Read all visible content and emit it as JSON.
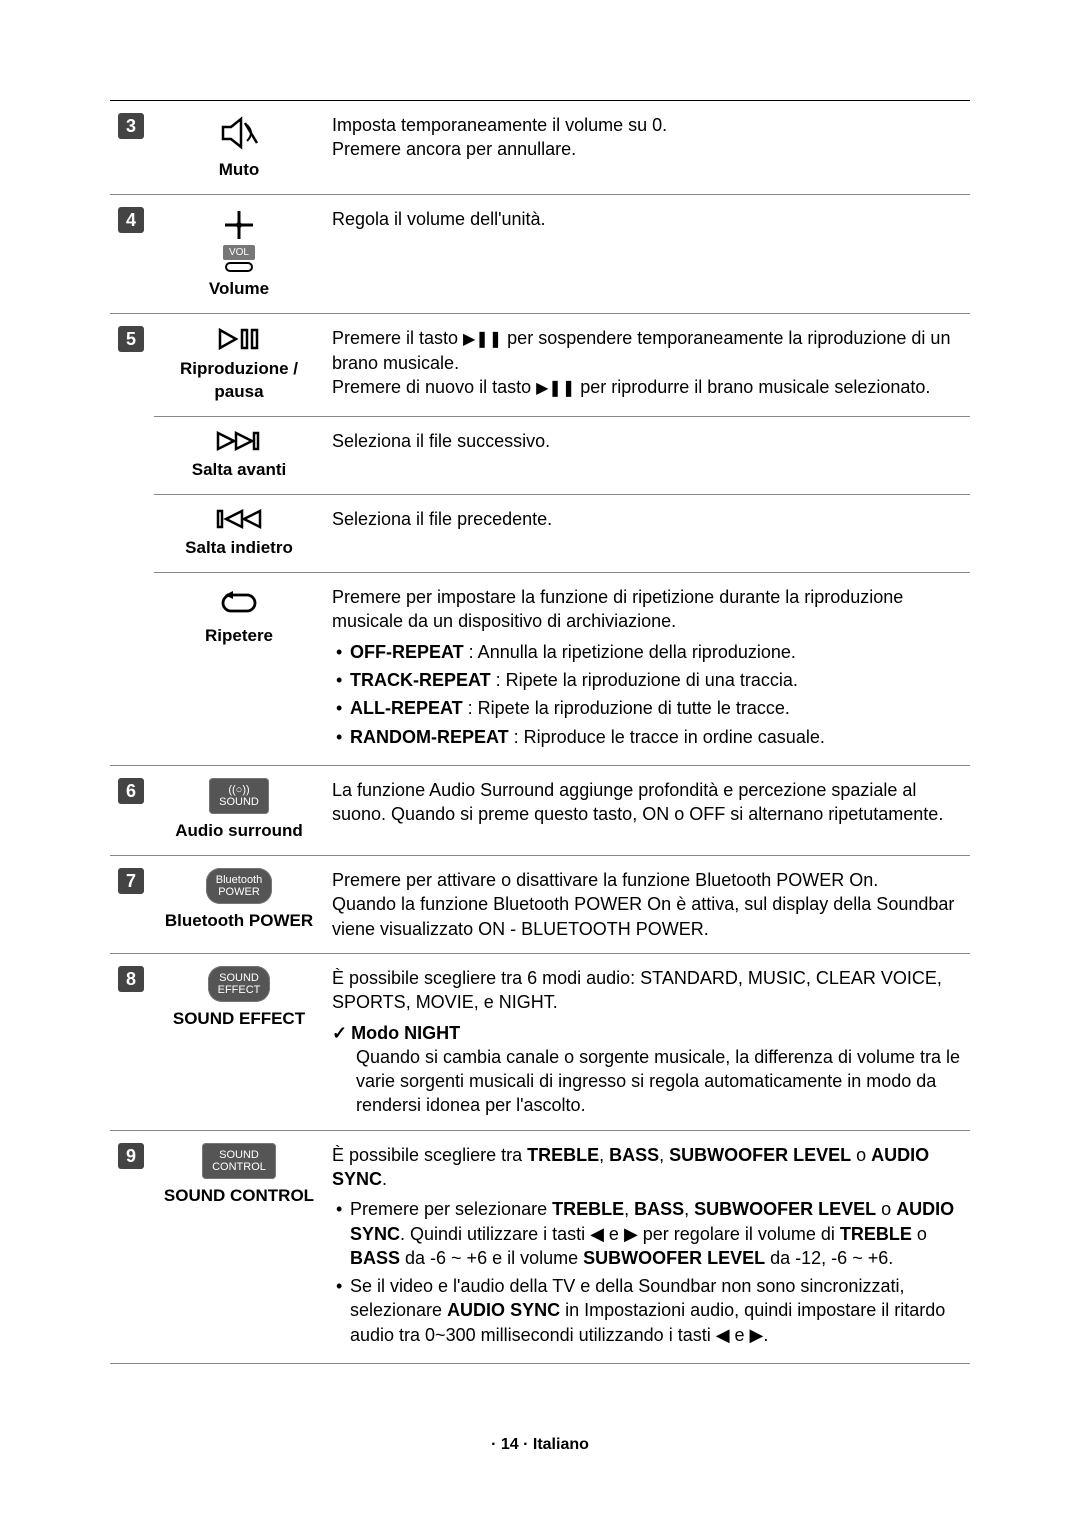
{
  "rows": {
    "r3": {
      "num": "3",
      "label": "Muto",
      "desc_html": "Imposta temporaneamente il volume su 0.<br>Premere ancora per annullare."
    },
    "r4": {
      "num": "4",
      "label": "Volume",
      "vol_text": "VOL",
      "desc_html": "Regola il volume dell'unità."
    },
    "r5": {
      "num": "5",
      "play_label": "Riproduzione / pausa",
      "play_desc_html": "Premere il tasto <span class='play-sym'>▶❚❚</span> per sospendere temporaneamente la riproduzione di un brano musicale.<br>Premere di nuovo il tasto <span class='play-sym'>▶❚❚</span> per riprodurre il brano musicale selezionato.",
      "fwd_label": "Salta avanti",
      "fwd_desc": "Seleziona il file successivo.",
      "back_label": "Salta indietro",
      "back_desc": "Seleziona il file precedente.",
      "repeat_label": "Ripetere",
      "repeat_intro": "Premere per impostare la funzione di ripetizione durante la riproduzione musicale da un dispositivo di archiviazione.",
      "repeat_items": [
        {
          "k": "OFF-REPEAT",
          "t": " : Annulla la ripetizione della riproduzione."
        },
        {
          "k": "TRACK-REPEAT",
          "t": " : Ripete la riproduzione di una traccia."
        },
        {
          "k": "ALL-REPEAT",
          "t": " : Ripete la riproduzione di tutte le tracce."
        },
        {
          "k": "RANDOM-REPEAT",
          "t": " : Riproduce le tracce in ordine casuale."
        }
      ]
    },
    "r6": {
      "num": "6",
      "btn_line1": "((○))",
      "btn_line2": "SOUND",
      "label": "Audio surround",
      "desc_html": "La funzione Audio Surround aggiunge profondità e percezione spaziale al suono. Quando si preme questo tasto, ON o OFF si alternano ripetutamente."
    },
    "r7": {
      "num": "7",
      "btn_line1": "Bluetooth",
      "btn_line2": "POWER",
      "label": "Bluetooth POWER",
      "desc_html": "Premere per attivare o disattivare la funzione Bluetooth POWER On.<br>Quando la funzione Bluetooth POWER On è attiva, sul display della Soundbar viene visualizzato ON - BLUETOOTH POWER."
    },
    "r8": {
      "num": "8",
      "btn_line1": "SOUND",
      "btn_line2": "EFFECT",
      "label": "SOUND EFFECT",
      "intro": "È possibile scegliere tra 6 modi audio: STANDARD, MUSIC, CLEAR VOICE, SPORTS, MOVIE, e NIGHT.",
      "check_title": "Modo NIGHT",
      "check_body": "Quando si cambia canale o sorgente musicale, la differenza di volume tra le varie sorgenti musicali di ingresso si regola automaticamente in modo da rendersi idonea per l'ascolto."
    },
    "r9": {
      "num": "9",
      "btn_line1": "SOUND",
      "btn_line2": "CONTROL",
      "label": "SOUND CONTROL",
      "intro_html": "È possibile scegliere tra <b>TREBLE</b>, <b>BASS</b>, <b>SUBWOOFER LEVEL</b> o <b>AUDIO SYNC</b>.",
      "b1_html": "Premere per selezionare <b>TREBLE</b>, <b>BASS</b>, <b>SUBWOOFER LEVEL</b> o <b>AUDIO SYNC</b>. Quindi utilizzare i tasti ◀ e ▶ per regolare il volume di <b>TREBLE</b> o <b>BASS</b> da -6 ~ +6 e il volume <b>SUBWOOFER LEVEL</b> da -12, -6 ~ +6.",
      "b2_html": "Se il video e l'audio della TV e della Soundbar non sono sincronizzati, selezionare <b>AUDIO SYNC</b> in Impostazioni audio, quindi impostare il ritardo audio tra 0~300 millisecondi utilizzando i tasti ◀ e ▶."
    }
  },
  "footer": "· 14 · Italiano"
}
